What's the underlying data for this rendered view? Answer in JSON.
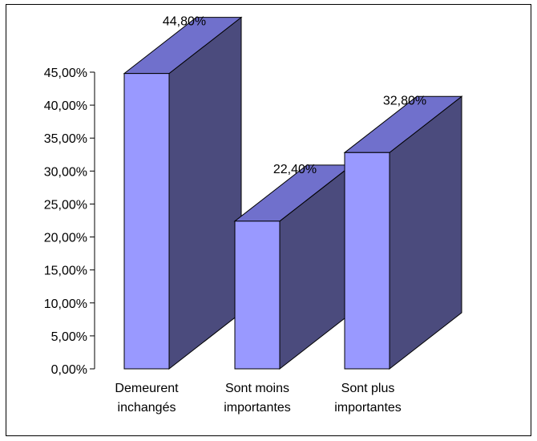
{
  "chart_data": {
    "type": "bar",
    "categories": [
      [
        "Demeurent",
        "inchangés"
      ],
      [
        "Sont moins",
        "importantes"
      ],
      [
        "Sont plus",
        "importantes"
      ]
    ],
    "values": [
      44.8,
      22.4,
      32.8
    ],
    "data_labels": [
      "44,80%",
      "22,40%",
      "32,80%"
    ],
    "ylim": [
      0,
      45
    ],
    "y_ticks": [
      0,
      5,
      10,
      15,
      20,
      25,
      30,
      35,
      40,
      45
    ],
    "y_tick_labels": [
      "0,00%",
      "5,00%",
      "10,00%",
      "15,00%",
      "20,00%",
      "25,00%",
      "30,00%",
      "35,00%",
      "40,00%",
      "45,00%"
    ],
    "grid": false,
    "legend": "none",
    "style": "3d-column",
    "colors": {
      "front": "#9999ff",
      "top": "#7070cc",
      "side": "#4b4b7d",
      "outline": "#000000"
    }
  }
}
